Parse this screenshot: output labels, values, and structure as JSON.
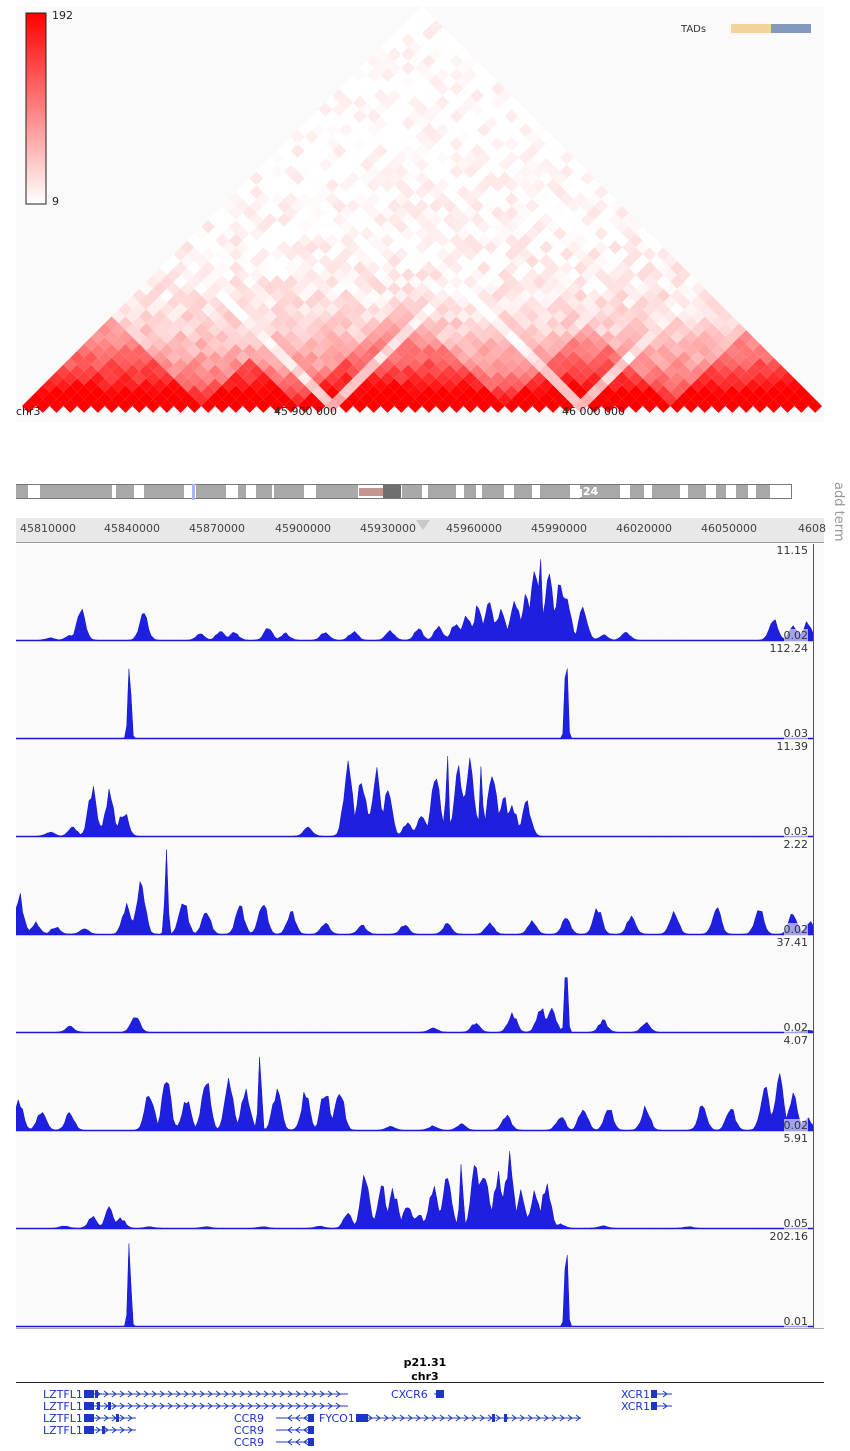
{
  "hic": {
    "colorbar_max": "192",
    "colorbar_min": "9",
    "tads_label": "TADs",
    "tad_colors": [
      "#f2d499",
      "#8398bd"
    ],
    "chrom_label": "chr3",
    "axis_labels": [
      "45 900 000",
      "46 000 000"
    ],
    "heat_color": "#ff0000"
  },
  "ideogram": {
    "band_label": "q24",
    "highlight_color": "#a8b4ff"
  },
  "ruler": {
    "ticks": [
      "45810000",
      "45840000",
      "45870000",
      "45900000",
      "45930000",
      "45960000",
      "45990000",
      "46020000",
      "46050000",
      "4608"
    ]
  },
  "add_term_label": "add term",
  "chart_data": {
    "type": "area",
    "x_range": [
      45803000,
      46084000
    ],
    "color": "#1f1fe0",
    "series": [
      {
        "max": "11.15",
        "min": "0.02",
        "peaks": [
          [
            45815000,
            0.3
          ],
          [
            45822000,
            0.6
          ],
          [
            45826000,
            3.9
          ],
          [
            45848000,
            3.6
          ],
          [
            45868000,
            0.8
          ],
          [
            45875000,
            1.2
          ],
          [
            45880000,
            1.0
          ],
          [
            45892000,
            1.6
          ],
          [
            45898000,
            0.9
          ],
          [
            45912000,
            1.1
          ],
          [
            45922000,
            1.2
          ],
          [
            45935000,
            1.3
          ],
          [
            45945000,
            1.5
          ],
          [
            45952000,
            1.8
          ],
          [
            45958000,
            2.3
          ],
          [
            45962000,
            3.5
          ],
          [
            45966000,
            4.6
          ],
          [
            45970000,
            5.2
          ],
          [
            45974000,
            4.2
          ],
          [
            45979000,
            5.7
          ],
          [
            45983000,
            6.1
          ],
          [
            45986000,
            9.5
          ],
          [
            45988000,
            11.15
          ],
          [
            45991000,
            8.8
          ],
          [
            45995000,
            8.5
          ],
          [
            45997000,
            6.2
          ],
          [
            46003000,
            4.2
          ],
          [
            46010000,
            0.7
          ],
          [
            46018000,
            1.1
          ],
          [
            46070000,
            2.9
          ],
          [
            46077000,
            2.0
          ],
          [
            46082000,
            2.5
          ]
        ]
      },
      {
        "max": "112.24",
        "min": "0.03",
        "peaks": [
          [
            45843000,
            112.24
          ],
          [
            45997000,
            112.24
          ]
        ]
      },
      {
        "max": "11.39",
        "min": "0.03",
        "peaks": [
          [
            45815000,
            0.6
          ],
          [
            45823000,
            1.2
          ],
          [
            45830000,
            6.5
          ],
          [
            45836000,
            6.0
          ],
          [
            45841000,
            3.5
          ],
          [
            45906000,
            1.2
          ],
          [
            45920000,
            9.8
          ],
          [
            45925000,
            8.1
          ],
          [
            45930000,
            8.7
          ],
          [
            45934000,
            6.5
          ],
          [
            45941000,
            1.9
          ],
          [
            45946000,
            3.2
          ],
          [
            45951000,
            9.5
          ],
          [
            45955000,
            11.39
          ],
          [
            45959000,
            9.0
          ],
          [
            45963000,
            9.8
          ],
          [
            45967000,
            10.5
          ],
          [
            45971000,
            9.0
          ],
          [
            45975000,
            5.2
          ],
          [
            45978000,
            4.2
          ],
          [
            45983000,
            4.7
          ]
        ]
      },
      {
        "max": "2.22",
        "min": "0.02",
        "peaks": [
          [
            45804000,
            1.1
          ],
          [
            45810000,
            0.3
          ],
          [
            45817000,
            0.2
          ],
          [
            45827000,
            0.15
          ],
          [
            45842000,
            0.8
          ],
          [
            45847000,
            1.5
          ],
          [
            45856000,
            2.22
          ],
          [
            45862000,
            0.9
          ],
          [
            45870000,
            0.65
          ],
          [
            45882000,
            0.75
          ],
          [
            45890000,
            0.9
          ],
          [
            45900000,
            0.6
          ],
          [
            45912000,
            0.3
          ],
          [
            45925000,
            0.25
          ],
          [
            45940000,
            0.25
          ],
          [
            45955000,
            0.3
          ],
          [
            45970000,
            0.3
          ],
          [
            45985000,
            0.35
          ],
          [
            45997000,
            0.45
          ],
          [
            46008000,
            0.7
          ],
          [
            46020000,
            0.5
          ],
          [
            46035000,
            0.6
          ],
          [
            46050000,
            0.7
          ],
          [
            46065000,
            0.7
          ],
          [
            46077000,
            0.55
          ],
          [
            46083000,
            0.35
          ]
        ]
      },
      {
        "max": "37.41",
        "min": "0.02",
        "peaks": [
          [
            45822000,
            2.5
          ],
          [
            45845000,
            8.0
          ],
          [
            45950000,
            2.0
          ],
          [
            45965000,
            4.2
          ],
          [
            45978000,
            8.5
          ],
          [
            45988000,
            11.0
          ],
          [
            45992000,
            10.2
          ],
          [
            45997000,
            37.41
          ],
          [
            46010000,
            5.3
          ],
          [
            46025000,
            4.5
          ],
          [
            46082000,
            1.0
          ]
        ]
      },
      {
        "max": "4.07",
        "min": "0.02",
        "peaks": [
          [
            45804000,
            1.4
          ],
          [
            45812000,
            1.0
          ],
          [
            45822000,
            0.9
          ],
          [
            45850000,
            2.0
          ],
          [
            45856000,
            2.5
          ],
          [
            45863000,
            1.5
          ],
          [
            45870000,
            2.7
          ],
          [
            45878000,
            2.3
          ],
          [
            45884000,
            1.9
          ],
          [
            45889000,
            4.07
          ],
          [
            45895000,
            2.0
          ],
          [
            45905000,
            1.8
          ],
          [
            45912000,
            2.0
          ],
          [
            45917000,
            2.1
          ],
          [
            45935000,
            0.2
          ],
          [
            45950000,
            0.2
          ],
          [
            45960000,
            0.3
          ],
          [
            45976000,
            0.7
          ],
          [
            45995000,
            0.7
          ],
          [
            46003000,
            1.2
          ],
          [
            46012000,
            1.1
          ],
          [
            46025000,
            1.1
          ],
          [
            46045000,
            1.2
          ],
          [
            46055000,
            1.1
          ],
          [
            46067000,
            2.2
          ],
          [
            46072000,
            2.6
          ],
          [
            46077000,
            1.8
          ],
          [
            46082000,
            0.6
          ]
        ]
      },
      {
        "max": "5.91",
        "min": "0.05",
        "peaks": [
          [
            45820000,
            0.15
          ],
          [
            45830000,
            0.8
          ],
          [
            45836000,
            1.4
          ],
          [
            45840000,
            0.7
          ],
          [
            45850000,
            0.1
          ],
          [
            45870000,
            0.1
          ],
          [
            45890000,
            0.1
          ],
          [
            45910000,
            0.15
          ],
          [
            45920000,
            1.0
          ],
          [
            45926000,
            3.7
          ],
          [
            45932000,
            3.0
          ],
          [
            45936000,
            2.7
          ],
          [
            45941000,
            1.6
          ],
          [
            45945000,
            1.0
          ],
          [
            45950000,
            3.0
          ],
          [
            45955000,
            3.4
          ],
          [
            45960000,
            5.91
          ],
          [
            45965000,
            4.2
          ],
          [
            45968000,
            4.2
          ],
          [
            45973000,
            3.8
          ],
          [
            45977000,
            5.0
          ],
          [
            45981000,
            2.5
          ],
          [
            45986000,
            2.6
          ],
          [
            45990000,
            3.0
          ],
          [
            45995000,
            0.3
          ],
          [
            46010000,
            0.15
          ],
          [
            46040000,
            0.1
          ]
        ]
      },
      {
        "max": "202.16",
        "min": "0.01",
        "peaks": [
          [
            45843000,
            202.16
          ],
          [
            45997000,
            202.16
          ]
        ]
      }
    ]
  },
  "band_label": "p21.31",
  "chrom_label": "chr3",
  "gene_color": "#1d35c8",
  "genes": [
    {
      "name": "LZTFL1",
      "row": 0
    },
    {
      "name": "LZTFL1",
      "row": 1
    },
    {
      "name": "LZTFL1",
      "row": 2
    },
    {
      "name": "LZTFL1",
      "row": 3
    },
    {
      "name": "CCR9",
      "row": 2
    },
    {
      "name": "CCR9",
      "row": 3
    },
    {
      "name": "CCR9",
      "row": 4
    },
    {
      "name": "CXCR6",
      "row": 0
    },
    {
      "name": "FYCO1",
      "row": 2
    },
    {
      "name": "XCR1",
      "row": 0
    },
    {
      "name": "XCR1",
      "row": 1
    }
  ]
}
